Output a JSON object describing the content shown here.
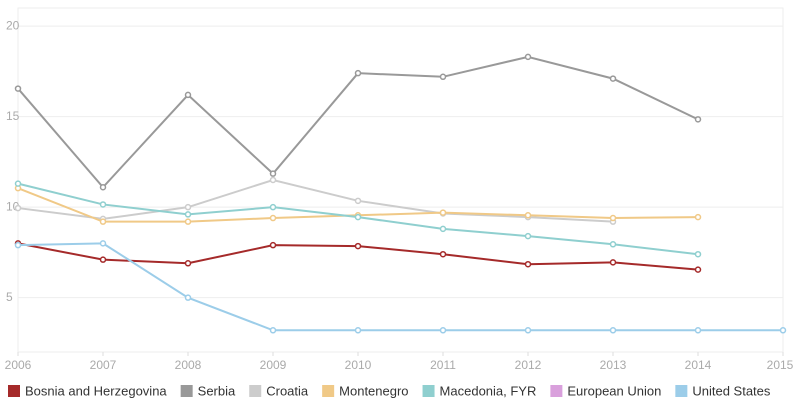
{
  "chart_data": {
    "type": "line",
    "x": [
      2006,
      2007,
      2008,
      2009,
      2010,
      2011,
      2012,
      2013,
      2014,
      2015
    ],
    "xlim": [
      2006,
      2015
    ],
    "xticks": [
      2006,
      2007,
      2008,
      2009,
      2010,
      2011,
      2012,
      2013,
      2014,
      2015
    ],
    "ylim": [
      2,
      21
    ],
    "yticks": [
      5,
      10,
      15,
      20
    ],
    "grid": true,
    "series": [
      {
        "name": "Bosnia and Herzegovina",
        "color": "#a52a2a",
        "values": [
          8.0,
          7.1,
          6.9,
          7.9,
          7.85,
          7.4,
          6.85,
          6.95,
          6.55,
          null
        ]
      },
      {
        "name": "Serbia",
        "color": "#999999",
        "values": [
          16.55,
          11.1,
          16.2,
          11.85,
          17.4,
          17.2,
          18.3,
          17.1,
          14.85,
          null
        ]
      },
      {
        "name": "Croatia",
        "color": "#cccccc",
        "values": [
          9.95,
          9.35,
          10.0,
          11.5,
          10.35,
          9.65,
          9.45,
          9.2,
          null,
          null
        ]
      },
      {
        "name": "Montenegro",
        "color": "#f0c987",
        "values": [
          11.05,
          9.2,
          9.2,
          9.4,
          9.55,
          9.7,
          9.55,
          9.4,
          9.45,
          null
        ]
      },
      {
        "name": "Macedonia, FYR",
        "color": "#8fcfcf",
        "values": [
          11.3,
          10.15,
          9.6,
          10.0,
          9.45,
          8.8,
          8.4,
          7.95,
          7.4,
          null
        ]
      },
      {
        "name": "European Union",
        "color": "#d9a0dc",
        "values": [
          null,
          null,
          null,
          null,
          null,
          null,
          null,
          null,
          null,
          null
        ]
      },
      {
        "name": "United States",
        "color": "#9ccde9",
        "values": [
          7.9,
          8.0,
          5.0,
          3.2,
          3.2,
          3.2,
          3.2,
          3.2,
          3.2,
          3.2
        ]
      }
    ]
  }
}
